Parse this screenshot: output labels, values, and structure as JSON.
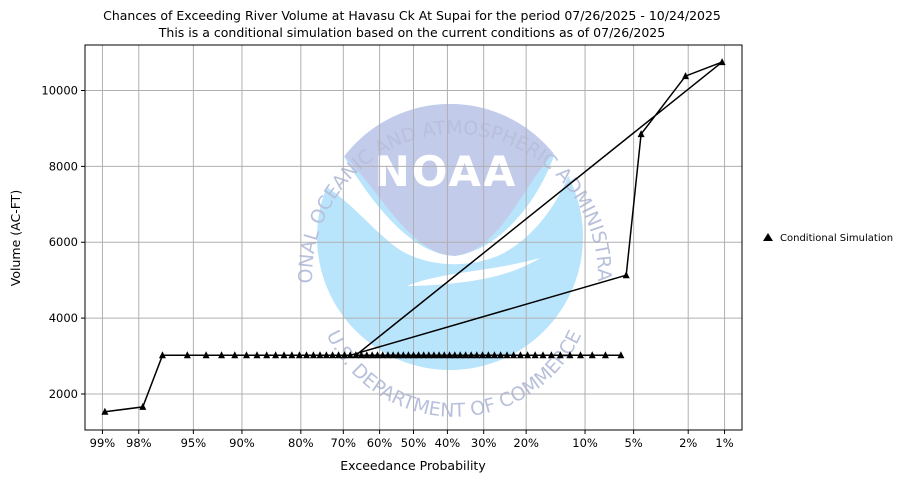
{
  "chart_data": {
    "type": "line",
    "title": "Chances of Exceeding River Volume at Havasu Ck At Supai for the period 07/26/2025 - 10/24/2025",
    "subtitle": "This is a conditional simulation based on the current conditions as of 07/26/2025",
    "xlabel": "Exceedance Probability",
    "ylabel": "Volume (AC-FT)",
    "x_scale": "normal-probability",
    "xlim": [
      0.993,
      0.007
    ],
    "ylim": [
      1050,
      11200
    ],
    "grid": true,
    "legend_position": "right",
    "x_ticks": [
      {
        "p": 0.99,
        "label": "99%"
      },
      {
        "p": 0.98,
        "label": "98%"
      },
      {
        "p": 0.95,
        "label": "95%"
      },
      {
        "p": 0.9,
        "label": "90%"
      },
      {
        "p": 0.8,
        "label": "80%"
      },
      {
        "p": 0.7,
        "label": "70%"
      },
      {
        "p": 0.6,
        "label": "60%"
      },
      {
        "p": 0.5,
        "label": "50%"
      },
      {
        "p": 0.4,
        "label": "40%"
      },
      {
        "p": 0.3,
        "label": "30%"
      },
      {
        "p": 0.2,
        "label": "20%"
      },
      {
        "p": 0.1,
        "label": "10%"
      },
      {
        "p": 0.05,
        "label": "5%"
      },
      {
        "p": 0.02,
        "label": "2%"
      },
      {
        "p": 0.01,
        "label": "1%"
      }
    ],
    "y_ticks": [
      2000,
      4000,
      6000,
      8000,
      10000
    ],
    "series": [
      {
        "name": "Conditional Simulation",
        "color": "#000000",
        "marker": "triangle",
        "points": [
          {
            "p": 0.9895,
            "v": 1530
          },
          {
            "p": 0.9785,
            "v": 1660
          },
          {
            "p": 0.9697,
            "v": 3020
          },
          {
            "p": 0.9545,
            "v": 3020
          },
          {
            "p": 0.9394,
            "v": 3020
          },
          {
            "p": 0.9242,
            "v": 3020
          },
          {
            "p": 0.9091,
            "v": 3020
          },
          {
            "p": 0.8939,
            "v": 3020
          },
          {
            "p": 0.8788,
            "v": 3020
          },
          {
            "p": 0.8636,
            "v": 3020
          },
          {
            "p": 0.8485,
            "v": 3020
          },
          {
            "p": 0.8333,
            "v": 3020
          },
          {
            "p": 0.8182,
            "v": 3020
          },
          {
            "p": 0.803,
            "v": 3020
          },
          {
            "p": 0.7879,
            "v": 3020
          },
          {
            "p": 0.7727,
            "v": 3020
          },
          {
            "p": 0.7576,
            "v": 3020
          },
          {
            "p": 0.7424,
            "v": 3020
          },
          {
            "p": 0.7273,
            "v": 3020
          },
          {
            "p": 0.7121,
            "v": 3020
          },
          {
            "p": 0.697,
            "v": 3020
          },
          {
            "p": 0.6818,
            "v": 3020
          },
          {
            "p": 0.056,
            "v": 5130
          },
          {
            "p": 0.0445,
            "v": 8850
          },
          {
            "p": 0.021,
            "v": 10380
          },
          {
            "p": 0.0105,
            "v": 10750
          },
          {
            "p": 0.6667,
            "v": 3020
          },
          {
            "p": 0.6515,
            "v": 3020
          },
          {
            "p": 0.6364,
            "v": 3020
          },
          {
            "p": 0.6212,
            "v": 3020
          },
          {
            "p": 0.6061,
            "v": 3020
          },
          {
            "p": 0.5909,
            "v": 3020
          },
          {
            "p": 0.5758,
            "v": 3020
          },
          {
            "p": 0.5606,
            "v": 3020
          },
          {
            "p": 0.5455,
            "v": 3020
          },
          {
            "p": 0.5303,
            "v": 3020
          },
          {
            "p": 0.5152,
            "v": 3020
          },
          {
            "p": 0.5,
            "v": 3020
          },
          {
            "p": 0.4848,
            "v": 3020
          },
          {
            "p": 0.4697,
            "v": 3020
          },
          {
            "p": 0.4545,
            "v": 3020
          },
          {
            "p": 0.4394,
            "v": 3020
          },
          {
            "p": 0.4242,
            "v": 3020
          },
          {
            "p": 0.4091,
            "v": 3020
          },
          {
            "p": 0.3939,
            "v": 3020
          },
          {
            "p": 0.3788,
            "v": 3020
          },
          {
            "p": 0.3636,
            "v": 3020
          },
          {
            "p": 0.3485,
            "v": 3020
          },
          {
            "p": 0.3333,
            "v": 3020
          },
          {
            "p": 0.3182,
            "v": 3020
          },
          {
            "p": 0.303,
            "v": 3020
          },
          {
            "p": 0.2879,
            "v": 3020
          },
          {
            "p": 0.2727,
            "v": 3020
          },
          {
            "p": 0.2576,
            "v": 3020
          },
          {
            "p": 0.2424,
            "v": 3020
          },
          {
            "p": 0.2273,
            "v": 3020
          },
          {
            "p": 0.2121,
            "v": 3020
          },
          {
            "p": 0.197,
            "v": 3020
          },
          {
            "p": 0.1818,
            "v": 3020
          },
          {
            "p": 0.1667,
            "v": 3020
          },
          {
            "p": 0.1515,
            "v": 3020
          },
          {
            "p": 0.1364,
            "v": 3020
          },
          {
            "p": 0.1212,
            "v": 3020
          },
          {
            "p": 0.1061,
            "v": 3020
          },
          {
            "p": 0.0909,
            "v": 3020
          },
          {
            "p": 0.0758,
            "v": 3020
          },
          {
            "p": 0.0606,
            "v": 3020
          }
        ]
      }
    ],
    "watermark": {
      "name": "noaa-logo",
      "logo_text": "NOAA",
      "ring_top": "NATIONAL OCEANIC AND ATMOSPHERIC ADMINISTRATION",
      "ring_bottom": "U.S. DEPARTMENT OF COMMERCE",
      "color_upper": "#c3cbeb",
      "color_lower": "#b9e5fc",
      "color_text": "#b8c0dc"
    },
    "colors": {
      "grid": "#b0b0b0",
      "axes": "#000000"
    }
  }
}
